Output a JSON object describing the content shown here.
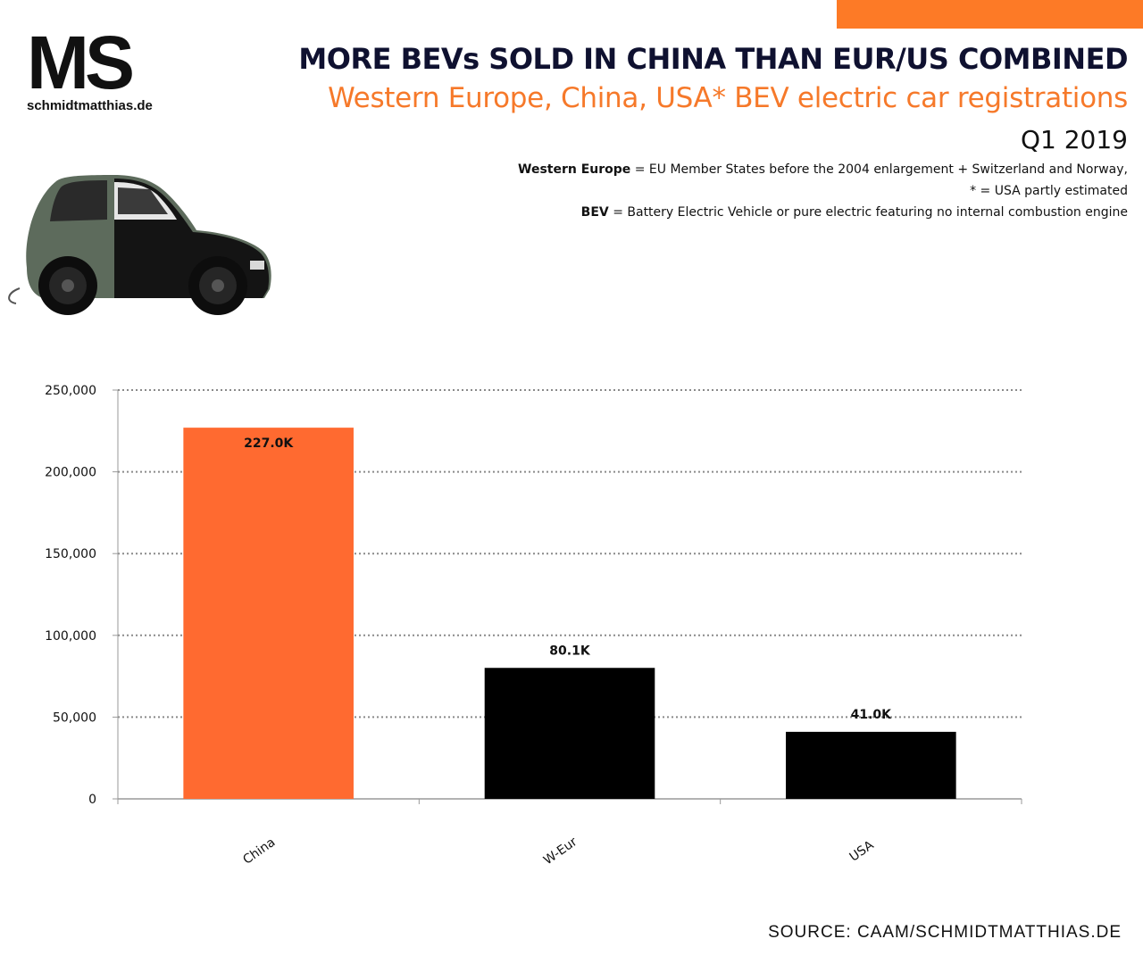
{
  "brand": {
    "logo_mark": "MS",
    "site": "schmidtmatthias.de"
  },
  "header": {
    "title": "MORE BEVs SOLD IN CHINA THAN EUR/US COMBINED",
    "subtitle": "Western Europe, China, USA* BEV electric car registrations",
    "period": "Q1 2019",
    "note1_bold": "Western Europe",
    "note1_text": " = EU Member States before the 2004 enlargement + Switzerland and Norway,",
    "note2_text": "* = USA partly estimated",
    "note3_bold": "BEV",
    "note3_text": " = Battery Electric Vehicle or pure electric featuring no internal combustion engine"
  },
  "colors": {
    "accent": "#fd7a26",
    "china_bar": "#ff6a30",
    "other_bars": "#000000",
    "title": "#0f1130",
    "subtitle": "#f6792a"
  },
  "source": "SOURCE: CAAM/SCHMIDTMATTHIAS.DE",
  "chart_data": {
    "type": "bar",
    "categories": [
      "China",
      "W-Eur",
      "USA"
    ],
    "values": [
      227000,
      80100,
      41000
    ],
    "data_labels": [
      "227.0K",
      "80.1K",
      "41.0K"
    ],
    "bar_colors": [
      "#ff6a30",
      "#000000",
      "#000000"
    ],
    "ylim": [
      0,
      250000
    ],
    "yticks": [
      0,
      50000,
      100000,
      150000,
      200000,
      250000
    ],
    "ytick_labels": [
      "0",
      "50,000",
      "100,000",
      "150,000",
      "200,000",
      "250,000"
    ],
    "grid": true,
    "legend": "none"
  }
}
